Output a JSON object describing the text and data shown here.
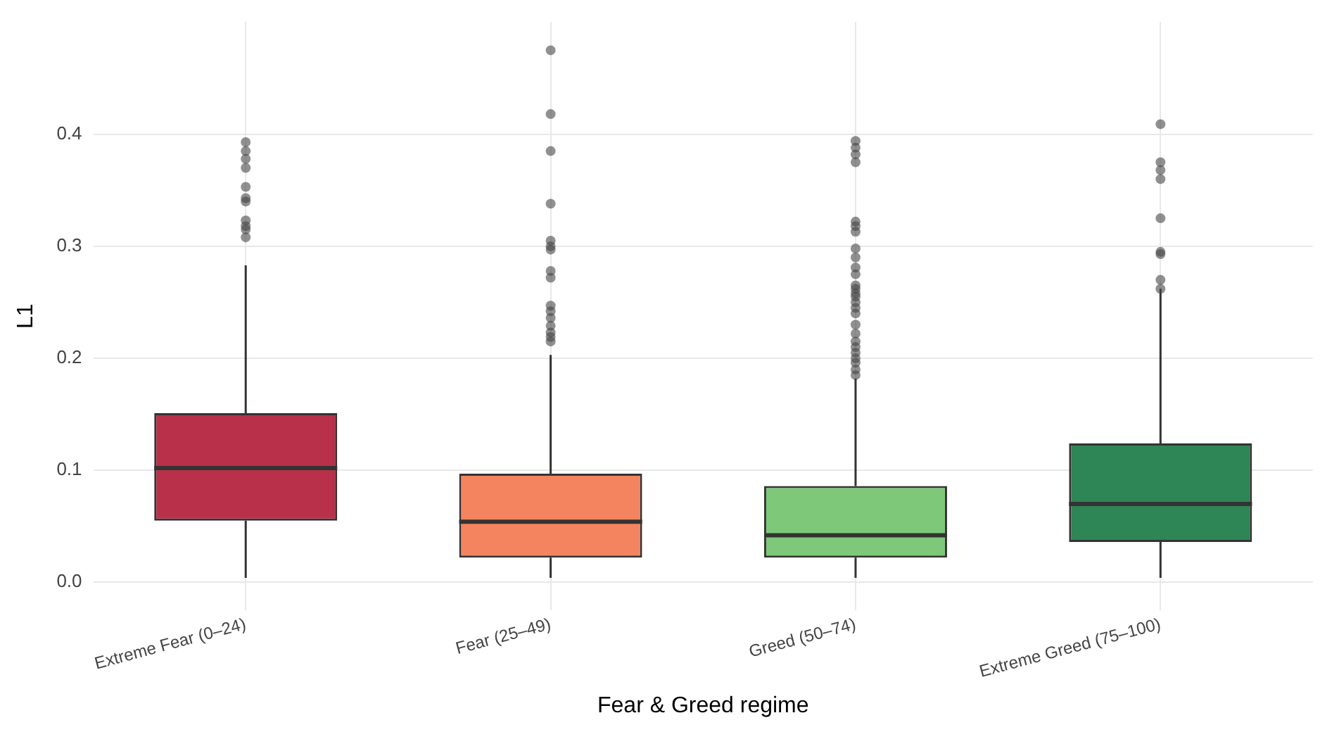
{
  "chart_data": {
    "type": "box",
    "xlabel": "Fear & Greed regime",
    "ylabel": "L1",
    "categories": [
      "Extreme Fear (0–24)",
      "Fear (25–49)",
      "Greed (50–74)",
      "Extreme Greed (75–100)"
    ],
    "colors": [
      "#b8304a",
      "#f4845f",
      "#7ec87a",
      "#2e8555"
    ],
    "boxes": [
      {
        "low": 0.004,
        "q1": 0.055,
        "median": 0.102,
        "q3": 0.151,
        "high": 0.283,
        "outliers": [
          0.393,
          0.385,
          0.378,
          0.37,
          0.353,
          0.343,
          0.34,
          0.323,
          0.318,
          0.315,
          0.308
        ]
      },
      {
        "low": 0.004,
        "q1": 0.022,
        "median": 0.054,
        "q3": 0.097,
        "high": 0.203,
        "outliers": [
          0.475,
          0.418,
          0.385,
          0.338,
          0.305,
          0.3,
          0.297,
          0.278,
          0.272,
          0.247,
          0.242,
          0.236,
          0.229,
          0.223,
          0.219,
          0.215
        ]
      },
      {
        "low": 0.004,
        "q1": 0.022,
        "median": 0.042,
        "q3": 0.086,
        "high": 0.182,
        "outliers": [
          0.394,
          0.388,
          0.382,
          0.375,
          0.322,
          0.318,
          0.313,
          0.298,
          0.29,
          0.281,
          0.275,
          0.265,
          0.262,
          0.258,
          0.255,
          0.25,
          0.245,
          0.24,
          0.23,
          0.222,
          0.215,
          0.21,
          0.205,
          0.2,
          0.196,
          0.19,
          0.185
        ]
      },
      {
        "low": 0.004,
        "q1": 0.036,
        "median": 0.07,
        "q3": 0.124,
        "high": 0.262,
        "outliers": [
          0.409,
          0.375,
          0.368,
          0.36,
          0.325,
          0.295,
          0.293,
          0.27,
          0.262
        ]
      }
    ],
    "ylim": [
      -0.025,
      0.5
    ],
    "yticks": [
      {
        "value": 0,
        "label": "0.0"
      },
      0.1,
      0.2,
      0.3,
      0.4
    ],
    "grid": true
  }
}
